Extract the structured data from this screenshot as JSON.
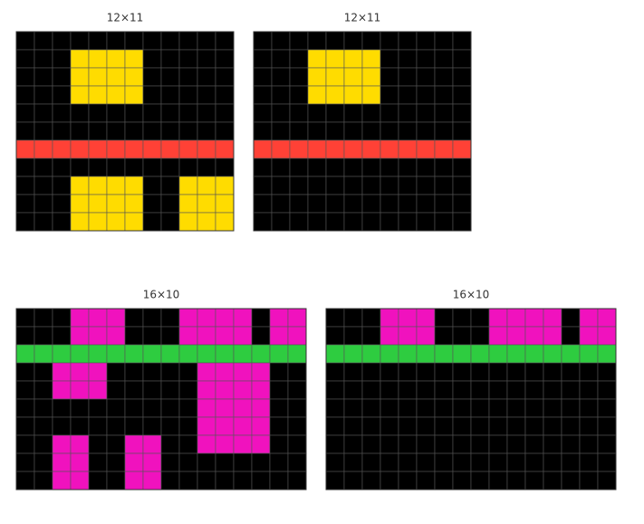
{
  "palette": {
    "0": "#000000",
    "2": "#ff4136",
    "3": "#2ecc40",
    "4": "#ffdc00",
    "6": "#f012be"
  },
  "grids": [
    {
      "label": "12×11",
      "rows": [
        [
          0,
          0,
          0,
          0,
          0,
          0,
          0,
          0,
          0,
          0,
          0,
          0
        ],
        [
          0,
          0,
          0,
          4,
          4,
          4,
          4,
          0,
          0,
          0,
          0,
          0
        ],
        [
          0,
          0,
          0,
          4,
          4,
          4,
          4,
          0,
          0,
          0,
          0,
          0
        ],
        [
          0,
          0,
          0,
          4,
          4,
          4,
          4,
          0,
          0,
          0,
          0,
          0
        ],
        [
          0,
          0,
          0,
          0,
          0,
          0,
          0,
          0,
          0,
          0,
          0,
          0
        ],
        [
          0,
          0,
          0,
          0,
          0,
          0,
          0,
          0,
          0,
          0,
          0,
          0
        ],
        [
          2,
          2,
          2,
          2,
          2,
          2,
          2,
          2,
          2,
          2,
          2,
          2
        ],
        [
          0,
          0,
          0,
          0,
          0,
          0,
          0,
          0,
          0,
          0,
          0,
          0
        ],
        [
          0,
          0,
          0,
          4,
          4,
          4,
          4,
          0,
          0,
          4,
          4,
          4
        ],
        [
          0,
          0,
          0,
          4,
          4,
          4,
          4,
          0,
          0,
          4,
          4,
          4
        ],
        [
          0,
          0,
          0,
          4,
          4,
          4,
          4,
          0,
          0,
          4,
          4,
          4
        ]
      ]
    },
    {
      "label": "12×11",
      "rows": [
        [
          0,
          0,
          0,
          0,
          0,
          0,
          0,
          0,
          0,
          0,
          0,
          0
        ],
        [
          0,
          0,
          0,
          4,
          4,
          4,
          4,
          0,
          0,
          0,
          0,
          0
        ],
        [
          0,
          0,
          0,
          4,
          4,
          4,
          4,
          0,
          0,
          0,
          0,
          0
        ],
        [
          0,
          0,
          0,
          4,
          4,
          4,
          4,
          0,
          0,
          0,
          0,
          0
        ],
        [
          0,
          0,
          0,
          0,
          0,
          0,
          0,
          0,
          0,
          0,
          0,
          0
        ],
        [
          0,
          0,
          0,
          0,
          0,
          0,
          0,
          0,
          0,
          0,
          0,
          0
        ],
        [
          2,
          2,
          2,
          2,
          2,
          2,
          2,
          2,
          2,
          2,
          2,
          2
        ],
        [
          0,
          0,
          0,
          0,
          0,
          0,
          0,
          0,
          0,
          0,
          0,
          0
        ],
        [
          0,
          0,
          0,
          0,
          0,
          0,
          0,
          0,
          0,
          0,
          0,
          0
        ],
        [
          0,
          0,
          0,
          0,
          0,
          0,
          0,
          0,
          0,
          0,
          0,
          0
        ],
        [
          0,
          0,
          0,
          0,
          0,
          0,
          0,
          0,
          0,
          0,
          0,
          0
        ]
      ]
    },
    {
      "label": "16×10",
      "rows": [
        [
          0,
          0,
          0,
          6,
          6,
          6,
          0,
          0,
          0,
          6,
          6,
          6,
          6,
          0,
          6,
          6
        ],
        [
          0,
          0,
          0,
          6,
          6,
          6,
          0,
          0,
          0,
          6,
          6,
          6,
          6,
          0,
          6,
          6
        ],
        [
          3,
          3,
          3,
          3,
          3,
          3,
          3,
          3,
          3,
          3,
          3,
          3,
          3,
          3,
          3,
          3
        ],
        [
          0,
          0,
          6,
          6,
          6,
          0,
          0,
          0,
          0,
          0,
          6,
          6,
          6,
          6,
          0,
          0
        ],
        [
          0,
          0,
          6,
          6,
          6,
          0,
          0,
          0,
          0,
          0,
          6,
          6,
          6,
          6,
          0,
          0
        ],
        [
          0,
          0,
          0,
          0,
          0,
          0,
          0,
          0,
          0,
          0,
          6,
          6,
          6,
          6,
          0,
          0
        ],
        [
          0,
          0,
          0,
          0,
          0,
          0,
          0,
          0,
          0,
          0,
          6,
          6,
          6,
          6,
          0,
          0
        ],
        [
          0,
          0,
          6,
          6,
          0,
          0,
          6,
          6,
          0,
          0,
          6,
          6,
          6,
          6,
          0,
          0
        ],
        [
          0,
          0,
          6,
          6,
          0,
          0,
          6,
          6,
          0,
          0,
          0,
          0,
          0,
          0,
          0,
          0
        ],
        [
          0,
          0,
          6,
          6,
          0,
          0,
          6,
          6,
          0,
          0,
          0,
          0,
          0,
          0,
          0,
          0
        ]
      ]
    },
    {
      "label": "16×10",
      "rows": [
        [
          0,
          0,
          0,
          6,
          6,
          6,
          0,
          0,
          0,
          6,
          6,
          6,
          6,
          0,
          6,
          6
        ],
        [
          0,
          0,
          0,
          6,
          6,
          6,
          0,
          0,
          0,
          6,
          6,
          6,
          6,
          0,
          6,
          6
        ],
        [
          3,
          3,
          3,
          3,
          3,
          3,
          3,
          3,
          3,
          3,
          3,
          3,
          3,
          3,
          3,
          3
        ],
        [
          0,
          0,
          0,
          0,
          0,
          0,
          0,
          0,
          0,
          0,
          0,
          0,
          0,
          0,
          0,
          0
        ],
        [
          0,
          0,
          0,
          0,
          0,
          0,
          0,
          0,
          0,
          0,
          0,
          0,
          0,
          0,
          0,
          0
        ],
        [
          0,
          0,
          0,
          0,
          0,
          0,
          0,
          0,
          0,
          0,
          0,
          0,
          0,
          0,
          0,
          0
        ],
        [
          0,
          0,
          0,
          0,
          0,
          0,
          0,
          0,
          0,
          0,
          0,
          0,
          0,
          0,
          0,
          0
        ],
        [
          0,
          0,
          0,
          0,
          0,
          0,
          0,
          0,
          0,
          0,
          0,
          0,
          0,
          0,
          0,
          0
        ],
        [
          0,
          0,
          0,
          0,
          0,
          0,
          0,
          0,
          0,
          0,
          0,
          0,
          0,
          0,
          0,
          0
        ],
        [
          0,
          0,
          0,
          0,
          0,
          0,
          0,
          0,
          0,
          0,
          0,
          0,
          0,
          0,
          0,
          0
        ]
      ]
    }
  ]
}
